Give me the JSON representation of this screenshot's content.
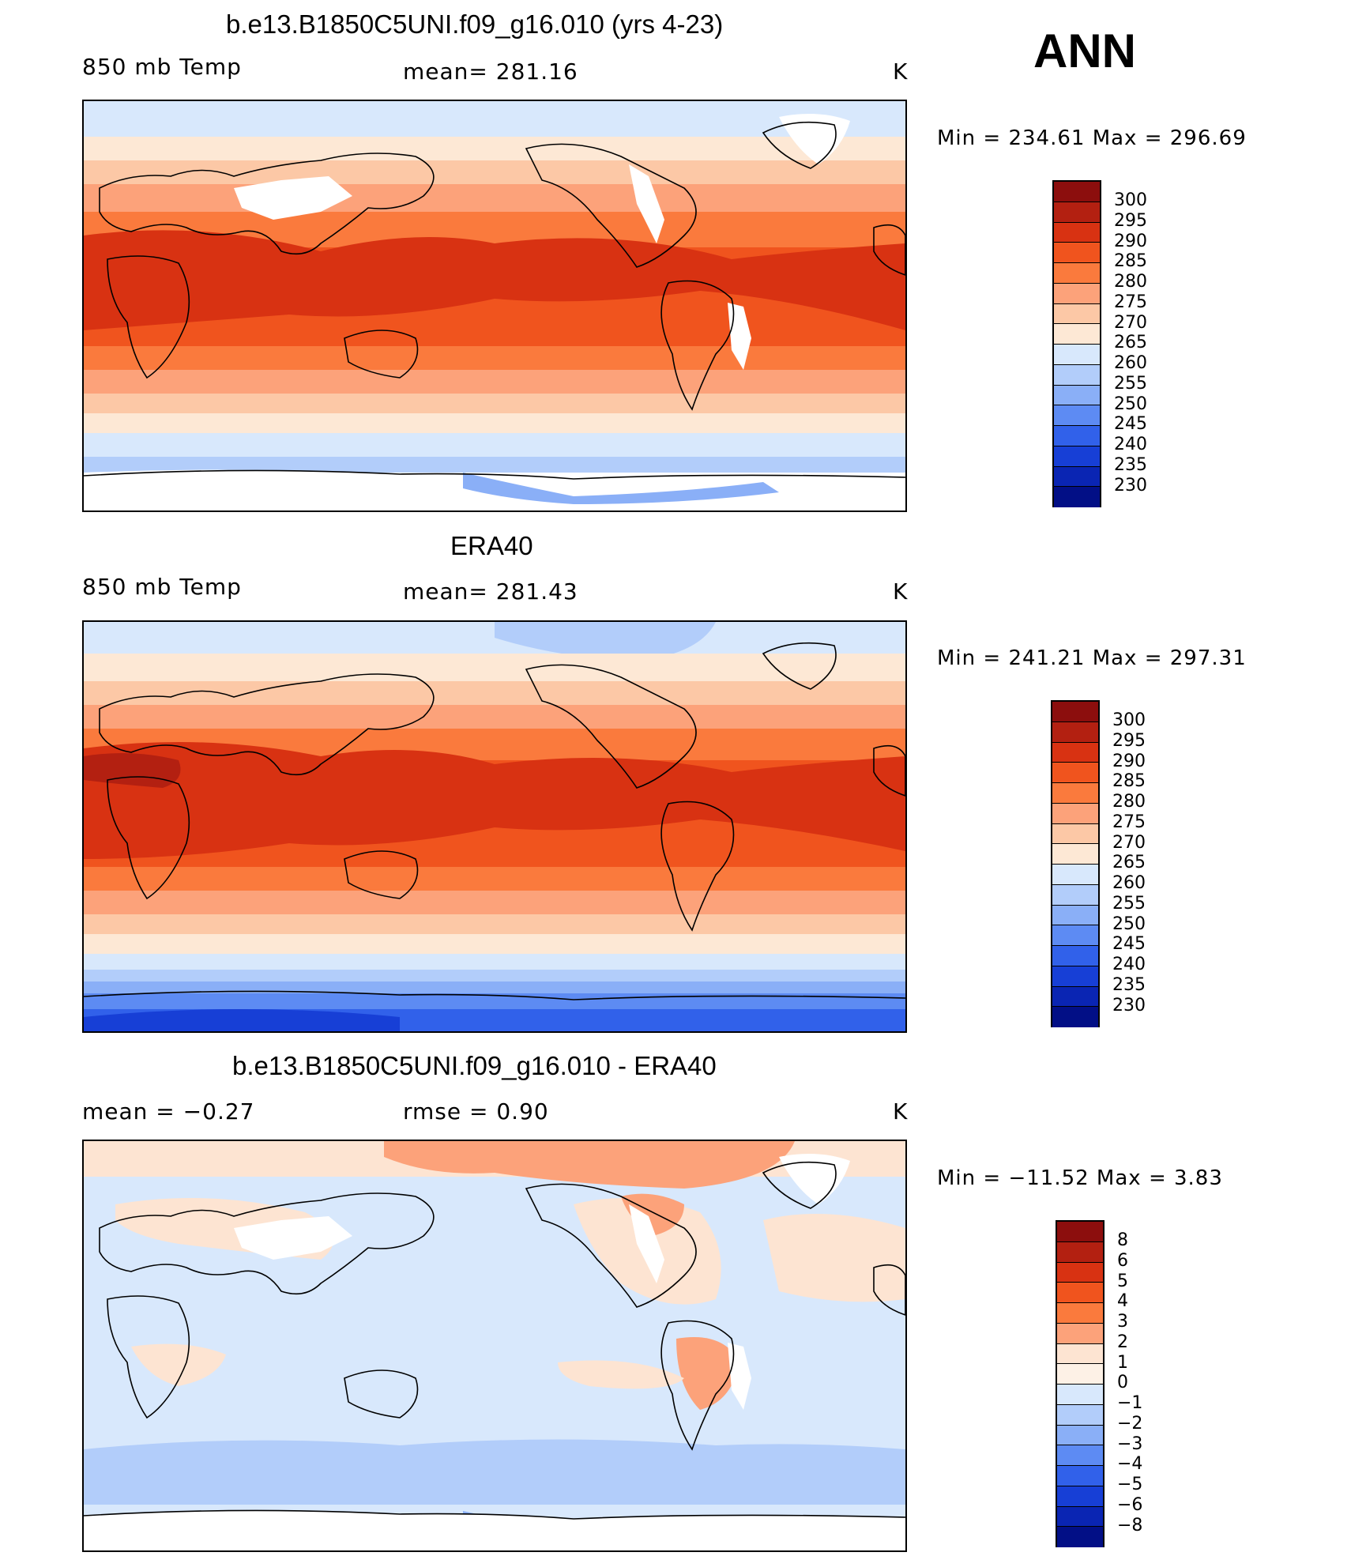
{
  "season": "ANN",
  "colors": {
    "abs": [
      "#8c0e0d",
      "#b32011",
      "#d83212",
      "#f0541e",
      "#fa7a3d",
      "#fca27a",
      "#fcc8a6",
      "#fde8d5",
      "#d8e8fc",
      "#b2cdfa",
      "#8aaff7",
      "#5d8bf3",
      "#3161ea",
      "#173fd6",
      "#0a25b3",
      "#020f86"
    ],
    "diff": [
      "#8c0e0d",
      "#b32011",
      "#d83212",
      "#f0541e",
      "#fa7a3d",
      "#fca27a",
      "#fde4d2",
      "#fdf1e6",
      "#d8e8fc",
      "#b2cdfa",
      "#8aaff7",
      "#5d8bf3",
      "#3161ea",
      "#173fd6",
      "#0a25b3",
      "#020f86"
    ]
  },
  "panels": [
    {
      "id": "model",
      "title": "b.e13.B1850C5UNI.f09_g16.010 (yrs 4-23)",
      "left": "850 mb Temp",
      "center": "mean= 281.16",
      "right": "K",
      "minmax": "Min = 234.61 Max = 296.69",
      "levels": [
        "300",
        "295",
        "290",
        "285",
        "280",
        "275",
        "270",
        "265",
        "260",
        "255",
        "250",
        "245",
        "240",
        "235",
        "230"
      ]
    },
    {
      "id": "obs",
      "title": "ERA40",
      "left": "850 mb Temp",
      "center": "mean= 281.43",
      "right": "K",
      "minmax": "Min = 241.21 Max = 297.31",
      "levels": [
        "300",
        "295",
        "290",
        "285",
        "280",
        "275",
        "270",
        "265",
        "260",
        "255",
        "250",
        "245",
        "240",
        "235",
        "230"
      ]
    },
    {
      "id": "diff",
      "title": "b.e13.B1850C5UNI.f09_g16.010 - ERA40",
      "left": "mean =   −0.27",
      "center": "rmse =    0.90",
      "right": "K",
      "minmax": "Min = −11.52 Max =    3.83",
      "levels": [
        "8",
        "6",
        "5",
        "4",
        "3",
        "2",
        "1",
        "0",
        "−1",
        "−2",
        "−3",
        "−4",
        "−5",
        "−6",
        "−8"
      ]
    }
  ]
}
